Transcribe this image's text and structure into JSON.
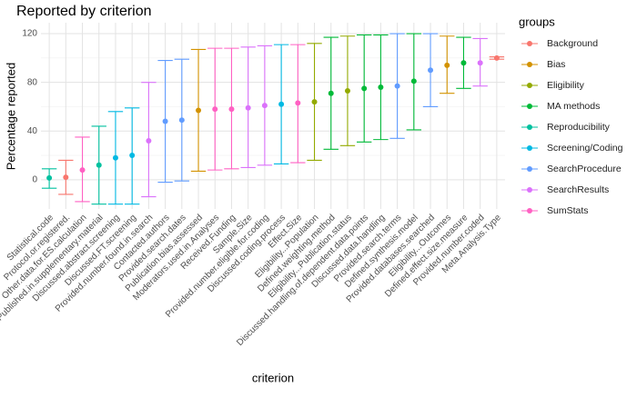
{
  "chart_data": {
    "type": "errorbar-point",
    "title": "Reported by criterion",
    "x_label": "criterion",
    "y_label": "Percentage reported",
    "legend_title": "groups",
    "groups": [
      {
        "name": "Background",
        "color": "#F8766D"
      },
      {
        "name": "Bias",
        "color": "#D39200"
      },
      {
        "name": "Eligibility",
        "color": "#93AA00"
      },
      {
        "name": "MA methods",
        "color": "#00BA38"
      },
      {
        "name": "Reproducibility",
        "color": "#00C19F"
      },
      {
        "name": "Screening/Coding",
        "color": "#00B9E3"
      },
      {
        "name": "SearchProcedure",
        "color": "#619CFF"
      },
      {
        "name": "SearchResults",
        "color": "#DB72FB"
      },
      {
        "name": "SumStats",
        "color": "#FF61C3"
      }
    ],
    "categories": [
      "Statistical.code",
      "Protocol.or.registered.",
      "Other.data.for.ES.calculation",
      "Published.in.supplementary.material",
      "Discussed.abstract.screening",
      "Discussed.FT.screening",
      "Provided.number.found.in.search",
      "Contacted.authors",
      "Provided.search.dates",
      "Publication.bias.assessed",
      "Moderators.used.in.Analyses",
      "Received.Funding",
      "Sample.Size",
      "Provided.number.eligible.for.coding",
      "Discussed.coding.process",
      "Effect.Size",
      "Eligibility...Population",
      "Defined.weighting.method",
      "Eligibility...Publication.status",
      "Discussed.handling.of.dependent.data.points",
      "Discussed.data.handling",
      "Provided.search.terms",
      "Defined.synthesis.model",
      "Provided.databases.searched",
      "Eligibility...Outcomes",
      "Defined.effect.size.measure",
      "Provided.number.coded",
      "Meta.Analysis.Type"
    ],
    "point_groups": [
      "Reproducibility",
      "Background",
      "SumStats",
      "Reproducibility",
      "Screening/Coding",
      "Screening/Coding",
      "SearchResults",
      "SearchProcedure",
      "SearchProcedure",
      "Bias",
      "SumStats",
      "SumStats",
      "SearchResults",
      "SearchResults",
      "Screening/Coding",
      "SumStats",
      "Eligibility",
      "MA methods",
      "Eligibility",
      "MA methods",
      "MA methods",
      "SearchProcedure",
      "MA methods",
      "SearchProcedure",
      "Bias",
      "MA methods",
      "SearchResults",
      "Background"
    ],
    "values": [
      1.5,
      2,
      8,
      12,
      18,
      20,
      32,
      48,
      49,
      57,
      58,
      58,
      59,
      61,
      62,
      63,
      64,
      71,
      73,
      75,
      76,
      77,
      81,
      90,
      94,
      96,
      96,
      100
    ],
    "lower": [
      -7,
      -12,
      -18,
      -20,
      -20,
      -20,
      -14,
      -2,
      -1,
      7,
      8,
      9,
      10,
      12,
      13,
      14,
      16,
      25,
      28,
      31,
      33,
      34,
      41,
      60,
      71,
      75,
      77,
      99
    ],
    "upper": [
      9,
      16,
      35,
      44,
      56,
      59,
      80,
      98,
      99,
      107,
      108,
      108,
      109,
      110,
      111,
      111,
      112,
      117,
      118,
      119,
      119,
      120,
      120,
      120,
      118,
      117,
      116,
      101
    ],
    "ylim": [
      -24,
      129
    ],
    "yticks": [
      0,
      40,
      80,
      120
    ],
    "minor_yticks": [
      20,
      60,
      100
    ],
    "grid": true
  }
}
